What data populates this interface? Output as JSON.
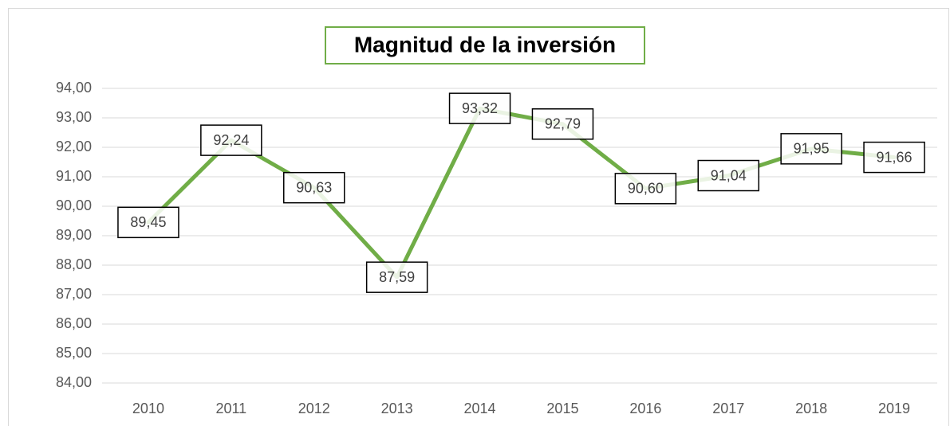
{
  "chart_data": {
    "type": "line",
    "title": "Magnitud de la inversión",
    "categories": [
      "2010",
      "2011",
      "2012",
      "2013",
      "2014",
      "2015",
      "2016",
      "2017",
      "2018",
      "2019"
    ],
    "values": [
      89.45,
      92.24,
      90.63,
      87.59,
      93.32,
      92.79,
      90.6,
      91.04,
      91.95,
      91.66
    ],
    "value_labels": [
      "89,45",
      "92,24",
      "90,63",
      "87,59",
      "93,32",
      "92,79",
      "90,60",
      "91,04",
      "91,95",
      "91,66"
    ],
    "color": "#70ad47",
    "ylim": [
      84,
      94
    ],
    "yticks": [
      {
        "value": 84,
        "label": "84,00"
      },
      {
        "value": 85,
        "label": "85,00"
      },
      {
        "value": 86,
        "label": "86,00"
      },
      {
        "value": 87,
        "label": "87,00"
      },
      {
        "value": 88,
        "label": "88,00"
      },
      {
        "value": 89,
        "label": "89,00"
      },
      {
        "value": 90,
        "label": "90,00"
      },
      {
        "value": 91,
        "label": "91,00"
      },
      {
        "value": 92,
        "label": "92,00"
      },
      {
        "value": 93,
        "label": "93,00"
      },
      {
        "value": 94,
        "label": "94,00"
      }
    ],
    "grid": true
  }
}
